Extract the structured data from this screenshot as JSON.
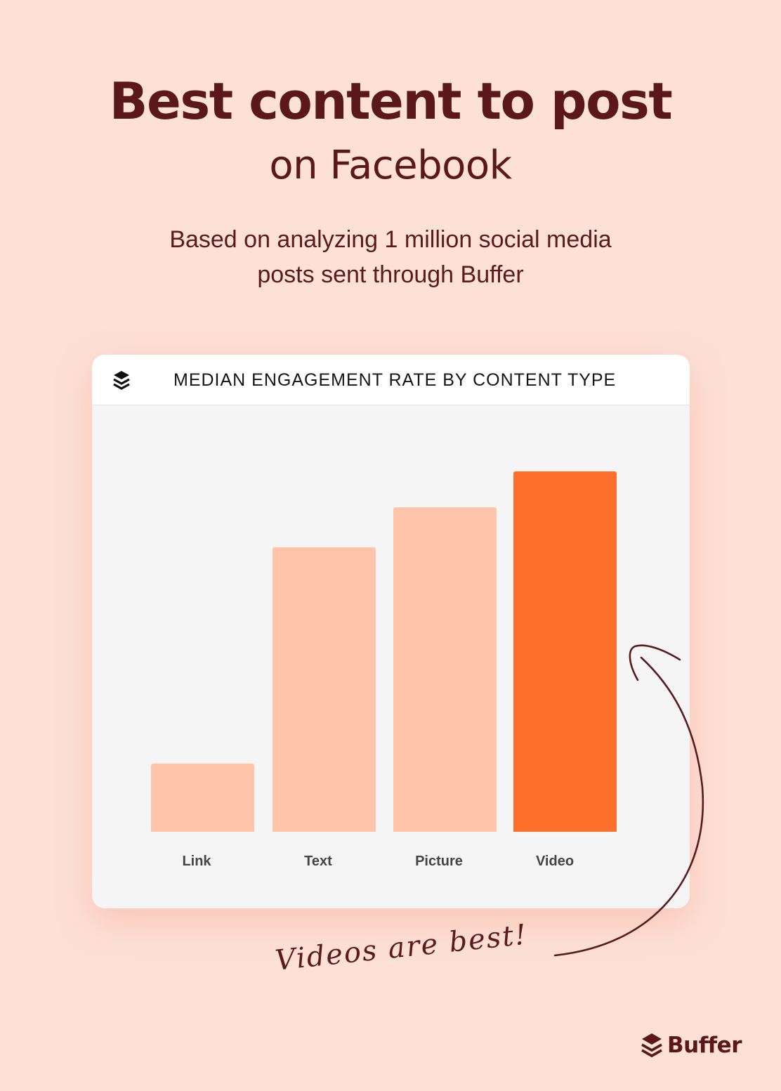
{
  "header": {
    "title": "Best content to post",
    "title_line2": "on Facebook",
    "subtitle_line1": "Based on analyzing 1 million social media",
    "subtitle_line2": "posts sent through Buffer"
  },
  "card": {
    "icon": "buffer-layers-icon",
    "title": "MEDIAN ENGAGEMENT RATE BY CONTENT TYPE"
  },
  "annotation": {
    "text": "Videos are best!",
    "icon": "curved-arrow-icon"
  },
  "brand": {
    "icon": "buffer-layers-icon",
    "name": "Buffer"
  },
  "colors": {
    "background": "#fde0d6",
    "text_dark": "#5a171c",
    "bar_default": "#ffc4aa",
    "bar_highlight": "#ff6f2c",
    "card_bg": "#f5f5f5"
  },
  "chart_data": {
    "type": "bar",
    "title": "MEDIAN ENGAGEMENT RATE BY CONTENT TYPE",
    "categories": [
      "Link",
      "Text",
      "Picture",
      "Video"
    ],
    "values": [
      19,
      79,
      90,
      100
    ],
    "value_unit": "relative bar height (% of tallest); no numeric axis shown",
    "highlight": "Video",
    "xlabel": "",
    "ylabel": "",
    "grid": false,
    "legend": "none",
    "annotation": "Videos are best!"
  }
}
